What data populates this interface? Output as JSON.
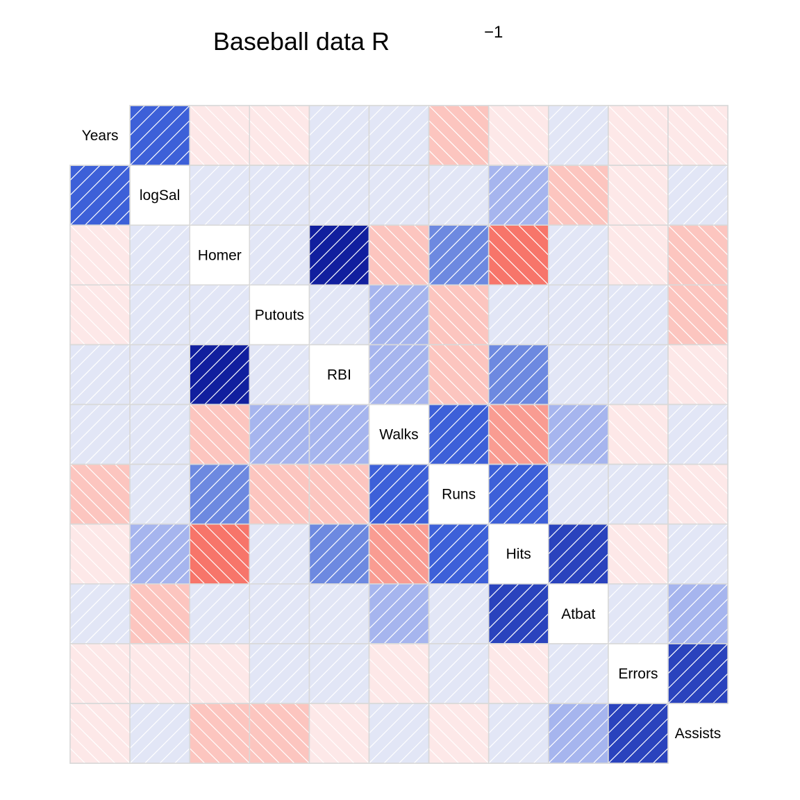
{
  "chart_data": {
    "type": "heatmap",
    "title": "Baseball data R",
    "title_superscript": "−1",
    "variables": [
      "Years",
      "logSal",
      "Homer",
      "Putouts",
      "RBI",
      "Walks",
      "Runs",
      "Hits",
      "Atbat",
      "Errors",
      "Assists"
    ],
    "values": [
      [
        1.0,
        0.7,
        -0.1,
        -0.1,
        0.1,
        0.1,
        -0.3,
        -0.1,
        0.1,
        -0.1,
        -0.1
      ],
      [
        0.7,
        1.0,
        0.1,
        0.1,
        0.1,
        0.1,
        0.1,
        0.4,
        -0.3,
        -0.1,
        0.1
      ],
      [
        -0.1,
        0.1,
        1.0,
        0.1,
        0.95,
        -0.3,
        0.55,
        -0.6,
        0.1,
        -0.1,
        -0.3
      ],
      [
        -0.1,
        0.1,
        0.1,
        1.0,
        0.1,
        0.4,
        -0.3,
        0.1,
        0.1,
        0.1,
        -0.3
      ],
      [
        0.1,
        0.1,
        0.95,
        0.1,
        1.0,
        0.4,
        -0.3,
        0.55,
        0.1,
        0.1,
        -0.1
      ],
      [
        0.1,
        0.1,
        -0.3,
        0.4,
        0.4,
        1.0,
        0.7,
        -0.45,
        0.4,
        -0.1,
        0.1
      ],
      [
        -0.3,
        0.1,
        0.55,
        -0.3,
        -0.3,
        0.7,
        1.0,
        0.7,
        0.1,
        0.1,
        -0.1
      ],
      [
        -0.1,
        0.4,
        -0.6,
        0.1,
        0.55,
        -0.45,
        0.7,
        1.0,
        0.85,
        -0.1,
        0.1
      ],
      [
        0.1,
        -0.3,
        0.1,
        0.1,
        0.1,
        0.4,
        0.1,
        0.85,
        1.0,
        0.1,
        0.4
      ],
      [
        -0.1,
        -0.1,
        -0.1,
        0.1,
        0.1,
        -0.1,
        0.1,
        -0.1,
        0.1,
        1.0,
        0.85
      ],
      [
        -0.1,
        0.1,
        -0.3,
        -0.3,
        -0.1,
        0.1,
        -0.1,
        0.1,
        0.4,
        0.85,
        1.0
      ]
    ],
    "diagonal": "labels",
    "shading": "sign by hatch direction, magnitude by color intensity",
    "colors": {
      "positive": [
        "#e2e6f6",
        "#a6b5ee",
        "#6d89e0",
        "#3d60d8",
        "#2a43bd",
        "#111f9e"
      ],
      "negative": [
        "#fde8e8",
        "#fcc5bf",
        "#f99c92",
        "#f7756a"
      ],
      "grid": "#d9d9d9"
    },
    "grid": true
  }
}
